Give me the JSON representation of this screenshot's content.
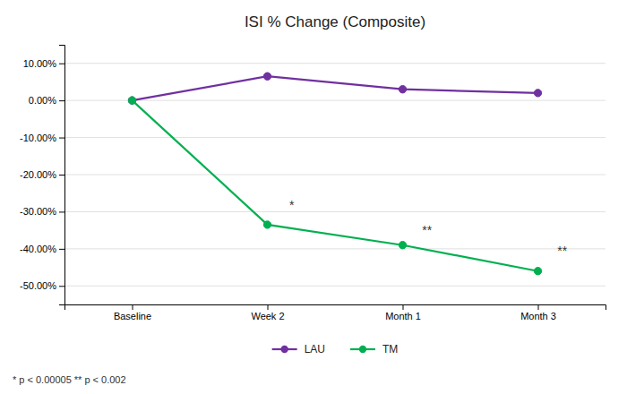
{
  "chart_data": {
    "type": "line",
    "title": "ISI % Change (Composite)",
    "categories": [
      "Baseline",
      "Week 2",
      "Month 1",
      "Month 3"
    ],
    "series": [
      {
        "name": "LAU",
        "color": "#7030A0",
        "marker": "circle",
        "values": [
          0.0,
          0.065,
          0.03,
          0.02
        ]
      },
      {
        "name": "TM",
        "color": "#00B050",
        "marker": "circle",
        "values": [
          0.0,
          -0.335,
          -0.39,
          -0.46
        ]
      }
    ],
    "ylim": [
      -0.55,
      0.15
    ],
    "yticks": [
      {
        "value": 0.1,
        "label": "10.00%"
      },
      {
        "value": 0.0,
        "label": "0.00%"
      },
      {
        "value": -0.1,
        "label": "-10.00%"
      },
      {
        "value": -0.2,
        "label": "-20.00%"
      },
      {
        "value": -0.3,
        "label": "-30.00%"
      },
      {
        "value": -0.4,
        "label": "-40.00%"
      },
      {
        "value": -0.5,
        "label": "-50.00%"
      }
    ],
    "annotations": [
      {
        "text": "*",
        "x": "Week 2",
        "y": -0.295
      },
      {
        "text": "**",
        "x": "Month 1",
        "y": -0.362
      },
      {
        "text": "**",
        "x": "Month 3",
        "y": -0.418
      }
    ],
    "footnote": "* p < 0.00005   ** p < 0.002",
    "grid": true,
    "legend": "bottom"
  }
}
